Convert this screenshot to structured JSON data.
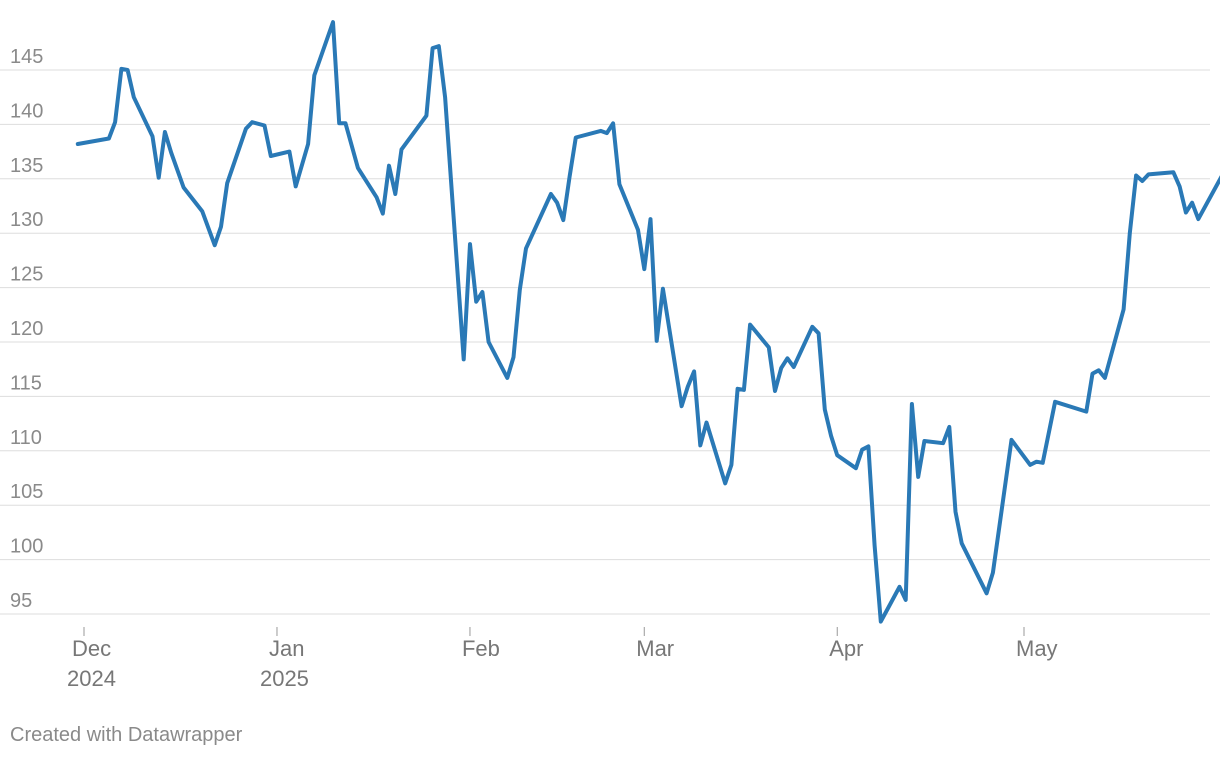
{
  "footer": {
    "credit": "Created with Datawrapper"
  },
  "chart_data": {
    "type": "line",
    "title": "",
    "xlabel": "",
    "ylabel": "",
    "ylim": [
      93,
      150
    ],
    "yticks": [
      95,
      100,
      105,
      110,
      115,
      120,
      125,
      130,
      135,
      140,
      145
    ],
    "grid": true,
    "legend": "none",
    "xticks": [
      {
        "date": "2024-12-01",
        "label": "Dec",
        "sublabel": "2024"
      },
      {
        "date": "2025-01-01",
        "label": "Jan",
        "sublabel": "2025"
      },
      {
        "date": "2025-02-01",
        "label": "Feb",
        "sublabel": ""
      },
      {
        "date": "2025-03-01",
        "label": "Mar",
        "sublabel": ""
      },
      {
        "date": "2025-04-01",
        "label": "Apr",
        "sublabel": ""
      },
      {
        "date": "2025-05-01",
        "label": "May",
        "sublabel": ""
      }
    ],
    "xlim": [
      "2024-11-30",
      "2025-05-31"
    ],
    "series": [
      {
        "color": "#2a79b6",
        "points": [
          [
            "2024-11-30",
            138.2
          ],
          [
            "2024-12-05",
            138.7
          ],
          [
            "2024-12-06",
            140.2
          ],
          [
            "2024-12-07",
            145.1
          ],
          [
            "2024-12-08",
            145.0
          ],
          [
            "2024-12-09",
            142.5
          ],
          [
            "2024-12-12",
            138.9
          ],
          [
            "2024-12-13",
            135.1
          ],
          [
            "2024-12-14",
            139.3
          ],
          [
            "2024-12-15",
            137.4
          ],
          [
            "2024-12-17",
            134.2
          ],
          [
            "2024-12-20",
            132.0
          ],
          [
            "2024-12-22",
            128.9
          ],
          [
            "2024-12-23",
            130.6
          ],
          [
            "2024-12-24",
            134.6
          ],
          [
            "2024-12-27",
            139.6
          ],
          [
            "2024-12-28",
            140.2
          ],
          [
            "2024-12-30",
            139.9
          ],
          [
            "2024-12-31",
            137.1
          ],
          [
            "2025-01-03",
            137.5
          ],
          [
            "2025-01-04",
            134.3
          ],
          [
            "2025-01-06",
            138.2
          ],
          [
            "2025-01-07",
            144.5
          ],
          [
            "2025-01-10",
            149.4
          ],
          [
            "2025-01-11",
            140.1
          ],
          [
            "2025-01-12",
            140.1
          ],
          [
            "2025-01-14",
            136.0
          ],
          [
            "2025-01-17",
            133.3
          ],
          [
            "2025-01-18",
            131.8
          ],
          [
            "2025-01-19",
            136.2
          ],
          [
            "2025-01-20",
            133.6
          ],
          [
            "2025-01-21",
            137.7
          ],
          [
            "2025-01-25",
            140.8
          ],
          [
            "2025-01-26",
            147.0
          ],
          [
            "2025-01-27",
            147.2
          ],
          [
            "2025-01-28",
            142.5
          ],
          [
            "2025-01-31",
            118.4
          ],
          [
            "2025-02-01",
            129.0
          ],
          [
            "2025-02-02",
            123.7
          ],
          [
            "2025-02-03",
            124.6
          ],
          [
            "2025-02-04",
            120.0
          ],
          [
            "2025-02-07",
            116.7
          ],
          [
            "2025-02-08",
            118.6
          ],
          [
            "2025-02-09",
            124.8
          ],
          [
            "2025-02-10",
            128.6
          ],
          [
            "2025-02-14",
            133.6
          ],
          [
            "2025-02-15",
            132.8
          ],
          [
            "2025-02-16",
            131.2
          ],
          [
            "2025-02-17",
            135.2
          ],
          [
            "2025-02-18",
            138.8
          ],
          [
            "2025-02-22",
            139.4
          ],
          [
            "2025-02-23",
            139.2
          ],
          [
            "2025-02-24",
            140.1
          ],
          [
            "2025-02-25",
            134.5
          ],
          [
            "2025-02-28",
            130.3
          ],
          [
            "2025-03-01",
            126.7
          ],
          [
            "2025-03-02",
            131.3
          ],
          [
            "2025-03-03",
            120.1
          ],
          [
            "2025-03-04",
            124.9
          ],
          [
            "2025-03-07",
            114.1
          ],
          [
            "2025-03-08",
            115.9
          ],
          [
            "2025-03-09",
            117.3
          ],
          [
            "2025-03-10",
            110.5
          ],
          [
            "2025-03-11",
            112.6
          ],
          [
            "2025-03-14",
            107.0
          ],
          [
            "2025-03-15",
            108.7
          ],
          [
            "2025-03-16",
            115.7
          ],
          [
            "2025-03-17",
            115.6
          ],
          [
            "2025-03-18",
            121.6
          ],
          [
            "2025-03-21",
            119.5
          ],
          [
            "2025-03-22",
            115.5
          ],
          [
            "2025-03-23",
            117.6
          ],
          [
            "2025-03-24",
            118.5
          ],
          [
            "2025-03-25",
            117.7
          ],
          [
            "2025-03-28",
            121.4
          ],
          [
            "2025-03-29",
            120.8
          ],
          [
            "2025-03-30",
            113.8
          ],
          [
            "2025-03-31",
            111.4
          ],
          [
            "2025-04-01",
            109.6
          ],
          [
            "2025-04-04",
            108.4
          ],
          [
            "2025-04-05",
            110.1
          ],
          [
            "2025-04-06",
            110.4
          ],
          [
            "2025-04-07",
            101.3
          ],
          [
            "2025-04-08",
            94.3
          ],
          [
            "2025-04-11",
            97.5
          ],
          [
            "2025-04-12",
            96.3
          ],
          [
            "2025-04-13",
            114.3
          ],
          [
            "2025-04-14",
            107.6
          ],
          [
            "2025-04-15",
            110.9
          ],
          [
            "2025-04-18",
            110.7
          ],
          [
            "2025-04-19",
            112.2
          ],
          [
            "2025-04-20",
            104.4
          ],
          [
            "2025-04-21",
            101.5
          ],
          [
            "2025-04-25",
            96.9
          ],
          [
            "2025-04-26",
            98.8
          ],
          [
            "2025-04-29",
            111.0
          ],
          [
            "2025-05-02",
            108.7
          ],
          [
            "2025-05-03",
            109.0
          ],
          [
            "2025-05-04",
            108.9
          ],
          [
            "2025-05-06",
            114.5
          ],
          [
            "2025-05-11",
            113.6
          ],
          [
            "2025-05-12",
            117.1
          ],
          [
            "2025-05-13",
            117.4
          ],
          [
            "2025-05-14",
            116.7
          ],
          [
            "2025-05-17",
            123.0
          ],
          [
            "2025-05-18",
            130.0
          ],
          [
            "2025-05-19",
            135.3
          ],
          [
            "2025-05-20",
            134.8
          ],
          [
            "2025-05-21",
            135.4
          ],
          [
            "2025-05-25",
            135.6
          ],
          [
            "2025-05-26",
            134.3
          ],
          [
            "2025-05-27",
            131.9
          ],
          [
            "2025-05-28",
            132.8
          ],
          [
            "2025-05-29",
            131.3
          ],
          [
            "2025-06-02",
            135.5
          ],
          [
            "2025-06-03",
            134.8
          ]
        ]
      }
    ]
  }
}
